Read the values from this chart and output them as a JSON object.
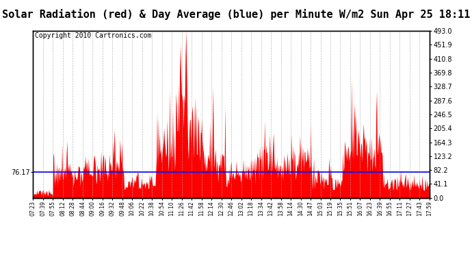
{
  "title": "Solar Radiation (red) & Day Average (blue) per Minute W/m2 Sun Apr 25 18:11",
  "copyright": "Copyright 2010 Cartronics.com",
  "y_max": 493.0,
  "y_min": 0.0,
  "y_ticks": [
    0.0,
    41.1,
    82.2,
    123.2,
    164.3,
    205.4,
    246.5,
    287.6,
    328.7,
    369.8,
    410.8,
    451.9,
    493.0
  ],
  "blue_line_y": 76.17,
  "left_label": "76.17",
  "right_label": "76.17",
  "bar_color": "#ff0000",
  "line_color": "#0000ff",
  "bg_color": "#ffffff",
  "grid_color": "#aaaaaa",
  "title_fontsize": 11,
  "copyright_fontsize": 7,
  "x_labels": [
    "07:23",
    "07:39",
    "07:55",
    "08:12",
    "08:28",
    "08:44",
    "09:00",
    "09:16",
    "09:32",
    "09:48",
    "10:06",
    "10:22",
    "10:38",
    "10:54",
    "11:10",
    "11:26",
    "11:42",
    "11:58",
    "12:14",
    "12:30",
    "12:46",
    "13:02",
    "13:18",
    "13:34",
    "13:42",
    "13:58",
    "14:14",
    "14:30",
    "14:47",
    "15:03",
    "15:19",
    "15:35",
    "15:51",
    "16:07",
    "16:23",
    "16:39",
    "16:55",
    "17:11",
    "17:27",
    "17:43",
    "17:59"
  ]
}
